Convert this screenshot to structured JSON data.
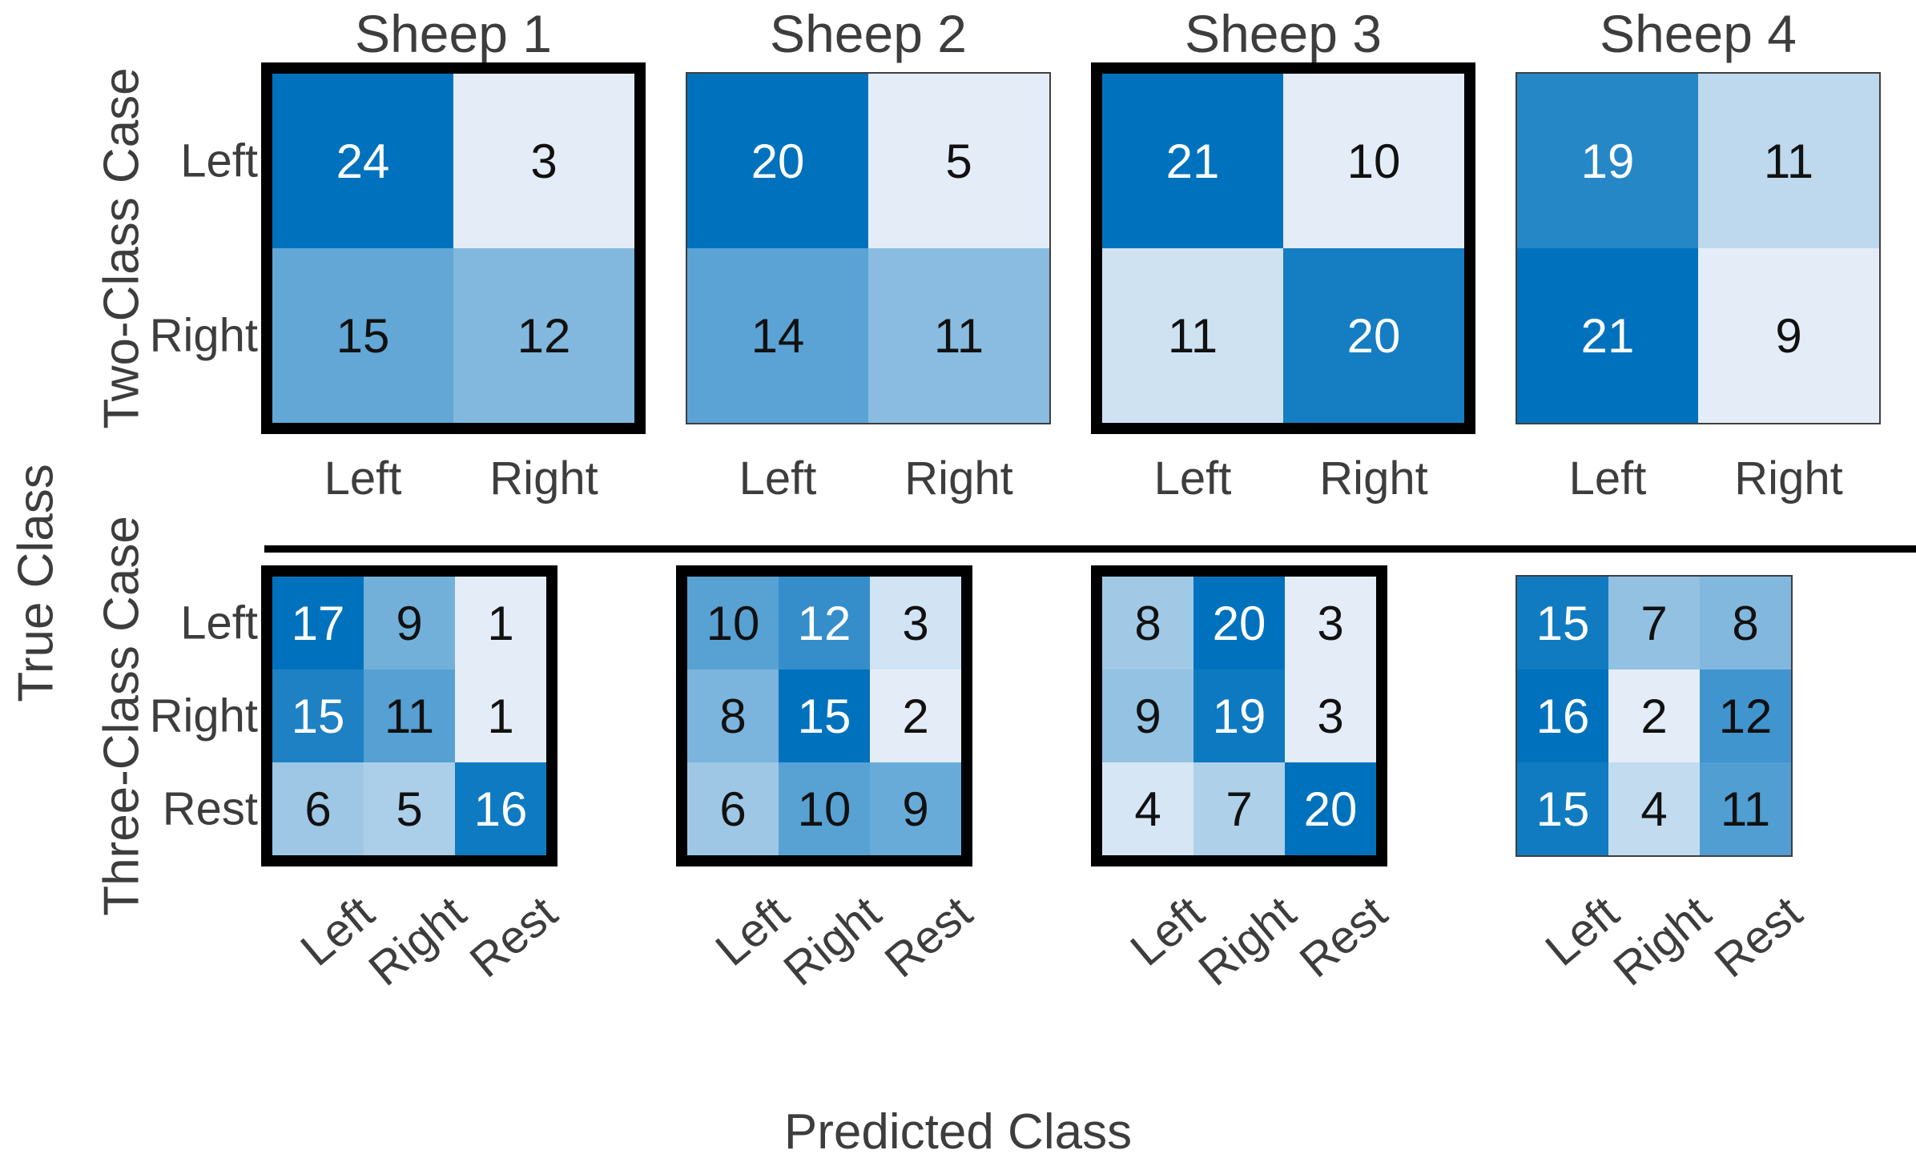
{
  "figure": {
    "ylabel": "True Class",
    "xlabel": "Predicted Class",
    "row_cases": [
      "Two-Class Case",
      "Three-Class Case"
    ],
    "col_titles": [
      "Sheep 1",
      "Sheep 2",
      "Sheep 3",
      "Sheep 4"
    ]
  },
  "colors": {
    "cmap_low": "#e4edf7",
    "cmap_high": "#0072bd",
    "text_on_light": "#111111",
    "text_on_dark": "#ffffff",
    "label_color": "#3d3d3d",
    "thick_frame": "#000000",
    "thin_frame": "#3f3f3f",
    "white_text_threshold": 0.73
  },
  "chart_data": [
    {
      "type": "heatmap",
      "row": 0,
      "col": 0,
      "title": "Sheep 1",
      "case": "Two-Class Case",
      "x_categories": [
        "Left",
        "Right"
      ],
      "y_categories": [
        "Left",
        "Right"
      ],
      "values": [
        [
          24,
          3
        ],
        [
          15,
          12
        ]
      ],
      "bold_frame": true
    },
    {
      "type": "heatmap",
      "row": 0,
      "col": 1,
      "title": "Sheep 2",
      "case": "Two-Class Case",
      "x_categories": [
        "Left",
        "Right"
      ],
      "y_categories": [
        "Left",
        "Right"
      ],
      "values": [
        [
          20,
          5
        ],
        [
          14,
          11
        ]
      ],
      "bold_frame": false
    },
    {
      "type": "heatmap",
      "row": 0,
      "col": 2,
      "title": "Sheep 3",
      "case": "Two-Class Case",
      "x_categories": [
        "Left",
        "Right"
      ],
      "y_categories": [
        "Left",
        "Right"
      ],
      "values": [
        [
          21,
          10
        ],
        [
          11,
          20
        ]
      ],
      "bold_frame": true
    },
    {
      "type": "heatmap",
      "row": 0,
      "col": 3,
      "title": "Sheep 4",
      "case": "Two-Class Case",
      "x_categories": [
        "Left",
        "Right"
      ],
      "y_categories": [
        "Left",
        "Right"
      ],
      "values": [
        [
          19,
          11
        ],
        [
          21,
          9
        ]
      ],
      "bold_frame": false
    },
    {
      "type": "heatmap",
      "row": 1,
      "col": 0,
      "title": "Sheep 1",
      "case": "Three-Class Case",
      "x_categories": [
        "Left",
        "Right",
        "Rest"
      ],
      "y_categories": [
        "Left",
        "Right",
        "Rest"
      ],
      "values": [
        [
          17,
          9,
          1
        ],
        [
          15,
          11,
          1
        ],
        [
          6,
          5,
          16
        ]
      ],
      "bold_frame": true
    },
    {
      "type": "heatmap",
      "row": 1,
      "col": 1,
      "title": "Sheep 2",
      "case": "Three-Class Case",
      "x_categories": [
        "Left",
        "Right",
        "Rest"
      ],
      "y_categories": [
        "Left",
        "Right",
        "Rest"
      ],
      "values": [
        [
          10,
          12,
          3
        ],
        [
          8,
          15,
          2
        ],
        [
          6,
          10,
          9
        ]
      ],
      "bold_frame": true
    },
    {
      "type": "heatmap",
      "row": 1,
      "col": 2,
      "title": "Sheep 3",
      "case": "Three-Class Case",
      "x_categories": [
        "Left",
        "Right",
        "Rest"
      ],
      "y_categories": [
        "Left",
        "Right",
        "Rest"
      ],
      "values": [
        [
          8,
          20,
          3
        ],
        [
          9,
          19,
          3
        ],
        [
          4,
          7,
          20
        ]
      ],
      "bold_frame": true
    },
    {
      "type": "heatmap",
      "row": 1,
      "col": 3,
      "title": "Sheep 4",
      "case": "Three-Class Case",
      "x_categories": [
        "Left",
        "Right",
        "Rest"
      ],
      "y_categories": [
        "Left",
        "Right",
        "Rest"
      ],
      "values": [
        [
          15,
          7,
          8
        ],
        [
          16,
          2,
          12
        ],
        [
          15,
          4,
          11
        ]
      ],
      "bold_frame": false
    }
  ]
}
